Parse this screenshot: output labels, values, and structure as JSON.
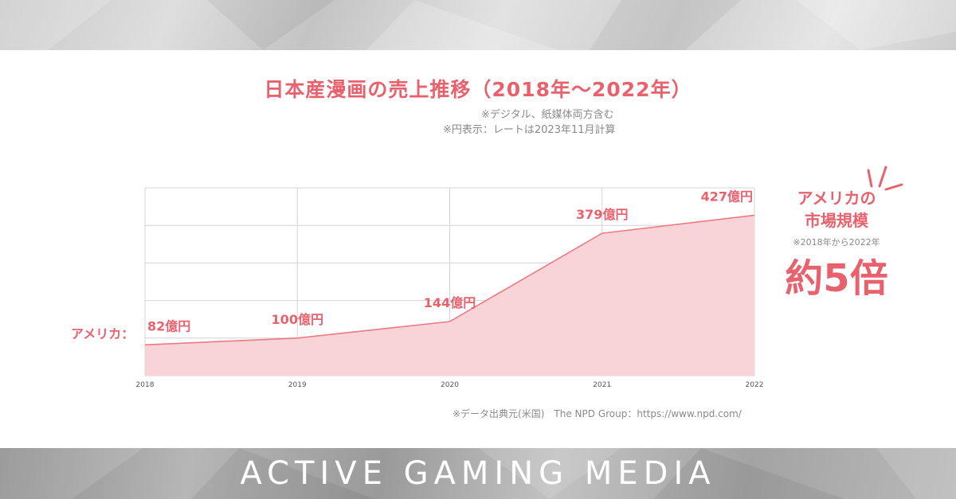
{
  "header": {
    "title": "日本産漫画の売上推移（2018年～2022年）",
    "note1": "※デジタル、紙媒体両方含む",
    "note2": "※円表示：レートは2023年11月計算"
  },
  "side_label": "アメリカ：",
  "callout": {
    "line1": "アメリカの",
    "line2": "市場規模",
    "note": "※2018年から2022年",
    "value": "約5倍"
  },
  "source": "※データ出典元(米国)　The NPD Group：https://www.npd.com/",
  "brand": "ACTIVE GAMING MEDIA",
  "colors": {
    "accent": "#e8626e",
    "area_fill": "#f8d3d7",
    "line": "#ec7a83",
    "grid": "#d4d4d4",
    "muted_text": "#8a8a8a"
  },
  "chart_data": {
    "type": "area",
    "title": "日本産漫画の売上推移（2018年～2022年）",
    "x": [
      "2018",
      "2019",
      "2020",
      "2021",
      "2022"
    ],
    "series": [
      {
        "values": [
          82,
          100,
          144,
          379,
          427
        ],
        "labels": [
          "82億円",
          "100億円",
          "144億円",
          "379億円",
          "427億円"
        ]
      }
    ],
    "ylim": [
      0,
      500
    ],
    "unit": "億円",
    "grid": true,
    "legend": "none"
  }
}
